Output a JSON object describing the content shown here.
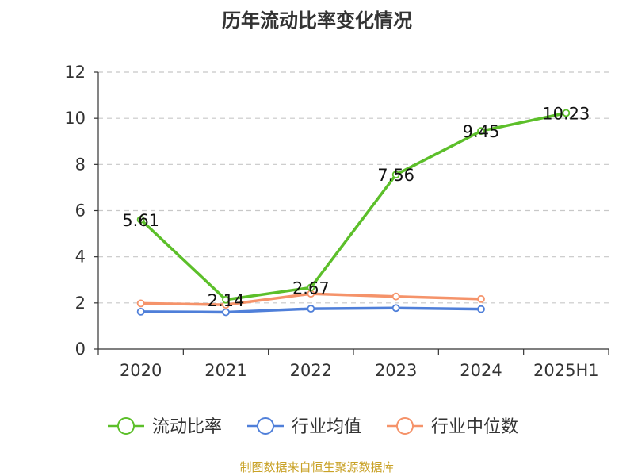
{
  "title": "历年流动比率变化情况",
  "source": "制图数据来自恒生聚源数据库",
  "chart_data": {
    "type": "line",
    "categories": [
      "2020",
      "2021",
      "2022",
      "2023",
      "2024",
      "2025H1"
    ],
    "ylim": [
      0,
      12
    ],
    "yticks": [
      "0",
      "2",
      "4",
      "6",
      "8",
      "10",
      "12"
    ],
    "grid": true,
    "legend_position": "bottom",
    "series": [
      {
        "name": "流动比率",
        "color": "#5cbf2a",
        "values": [
          5.61,
          2.14,
          2.67,
          7.56,
          9.45,
          10.23
        ],
        "labels": [
          "5.61",
          "2.14",
          "2.67",
          "7.56",
          "9.45",
          "10.23"
        ]
      },
      {
        "name": "行业均值",
        "color": "#4f7fd9",
        "values": [
          1.62,
          1.6,
          1.75,
          1.78,
          1.73,
          null
        ]
      },
      {
        "name": "行业中位数",
        "color": "#f5936a",
        "values": [
          1.98,
          1.92,
          2.4,
          2.28,
          2.17,
          null
        ]
      }
    ]
  }
}
